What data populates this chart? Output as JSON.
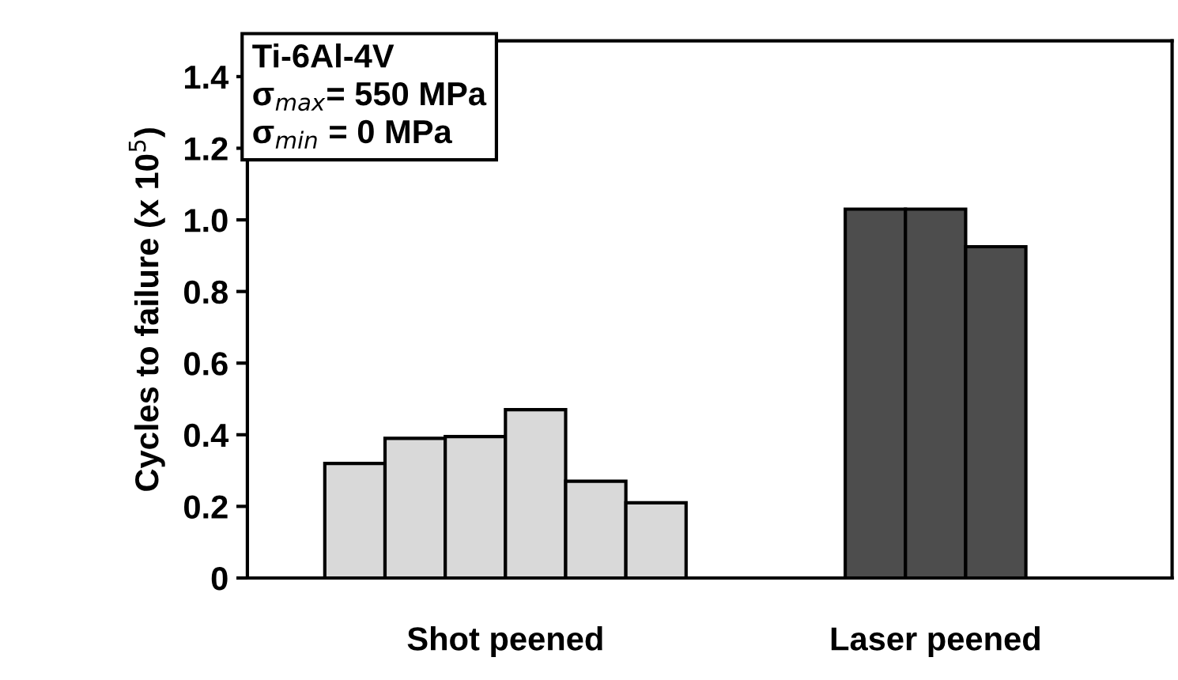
{
  "chart_data": {
    "type": "bar",
    "categories": [
      "Shot peened",
      "Laser peened"
    ],
    "ylabel": "Cycles to failure (x 10$^{5}$)",
    "series": [
      {
        "colors": [
          "#d9d9d9",
          "#4d4d4d"
        ],
        "values": [
          0.32,
          1.03
        ]
      },
      {
        "colors": [
          "#d9d9d9",
          "#4d4d4d"
        ],
        "values": [
          0.39,
          1.03
        ]
      },
      {
        "colors": [
          "#d9d9d9",
          "#4d4d4d"
        ],
        "values": [
          0.395,
          0.925
        ]
      },
      {
        "colors": [
          "#d9d9d9",
          "#4d4d4d"
        ],
        "values": [
          0.47,
          null
        ]
      },
      {
        "colors": [
          "#d9d9d9",
          "#4d4d4d"
        ],
        "values": [
          0.27,
          null
        ]
      },
      {
        "colors": [
          "#d9d9d9",
          "#4d4d4d"
        ],
        "values": [
          0.21,
          null
        ]
      }
    ],
    "ylim": [
      0,
      1.5
    ],
    "yticks": [
      0,
      0.2,
      0.4,
      0.6,
      0.8,
      {
        "value": 1.0,
        "label": "1.0"
      },
      1.2,
      1.4
    ],
    "annotations": [
      "Ti-6Al-4V",
      "σ$_{max}$= 550 MPa",
      "σ$_{min}$ = 0 MPa"
    ],
    "grid": false,
    "legend": false
  }
}
